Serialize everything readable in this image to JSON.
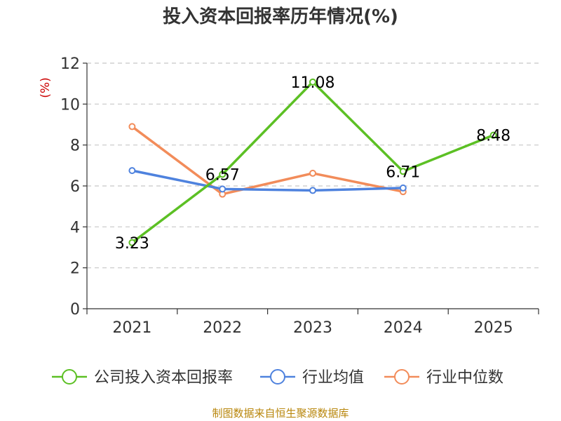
{
  "chart_data": {
    "type": "line",
    "title": "投入资本回报率历年情况(%)",
    "ylabel": "(%)",
    "categories": [
      "2021",
      "2022",
      "2023",
      "2024",
      "2025"
    ],
    "ylim": [
      0,
      12
    ],
    "yticks": [
      0,
      2,
      4,
      6,
      8,
      10,
      12
    ],
    "grid": true,
    "legend_position": "bottom",
    "series": [
      {
        "name": "公司投入资本回报率",
        "color": "#5cc024",
        "values": [
          3.23,
          6.57,
          11.08,
          6.71,
          8.48
        ],
        "labels": [
          "3.23",
          "6.57",
          "11.08",
          "6.71",
          "8.48"
        ]
      },
      {
        "name": "行业均值",
        "color": "#4e82de",
        "values": [
          6.75,
          5.85,
          5.78,
          5.9,
          null
        ]
      },
      {
        "name": "行业中位数",
        "color": "#f28c5a",
        "values": [
          8.9,
          5.6,
          6.62,
          5.72,
          null
        ]
      }
    ]
  },
  "footer": {
    "source": "制图数据来自恒生聚源数据库"
  }
}
